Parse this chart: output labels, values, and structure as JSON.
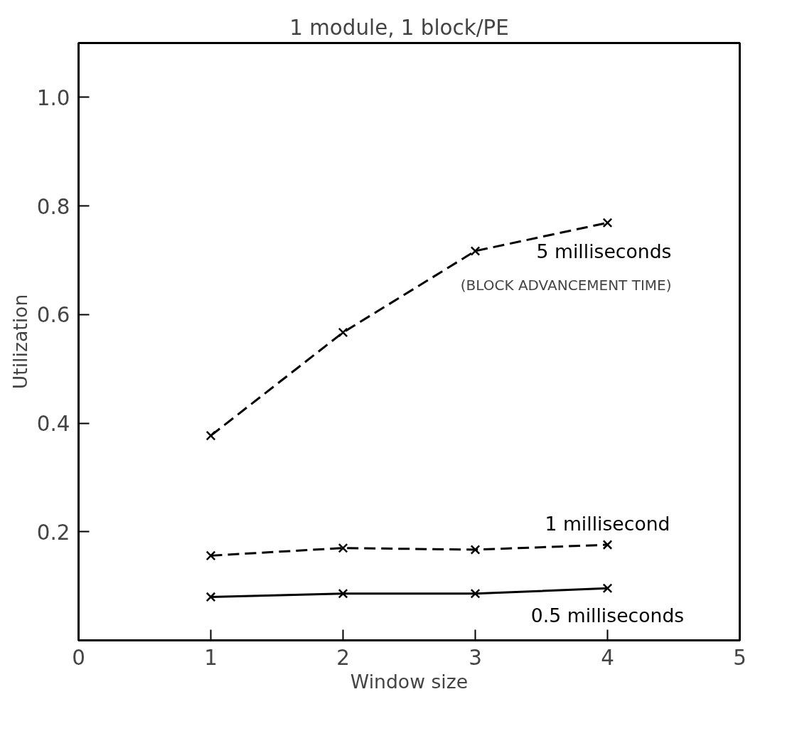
{
  "chart_data": {
    "type": "line",
    "title": "1 module,    1 block/PE",
    "xlabel": "Window size",
    "ylabel": "Utilization",
    "x": [
      1,
      2,
      3,
      4
    ],
    "series": [
      {
        "name": "5 milliseconds",
        "color": "#000000",
        "values": [
          0.377,
          0.567,
          0.717,
          0.769
        ],
        "line_style": "dashed"
      },
      {
        "name": "1 millisecond",
        "color": "#000000",
        "values": [
          0.156,
          0.17,
          0.167,
          0.176
        ],
        "line_style": "dashed"
      },
      {
        "name": "0.5 milliseconds",
        "color": "#000000",
        "values": [
          0.08,
          0.086,
          0.086,
          0.096
        ],
        "line_style": "solid"
      }
    ],
    "annotations": [
      "(BLOCK ADVANCEMENT TIME)"
    ],
    "xlim": [
      0,
      5
    ],
    "ylim": [
      0,
      1.1
    ],
    "xticks": [
      0,
      1,
      2,
      3,
      4,
      5
    ],
    "yticks": [
      0.2,
      0.4,
      0.6,
      0.8,
      {
        "value": 1.0,
        "label": "1.0"
      }
    ],
    "marker": "cross",
    "grid": false
  }
}
